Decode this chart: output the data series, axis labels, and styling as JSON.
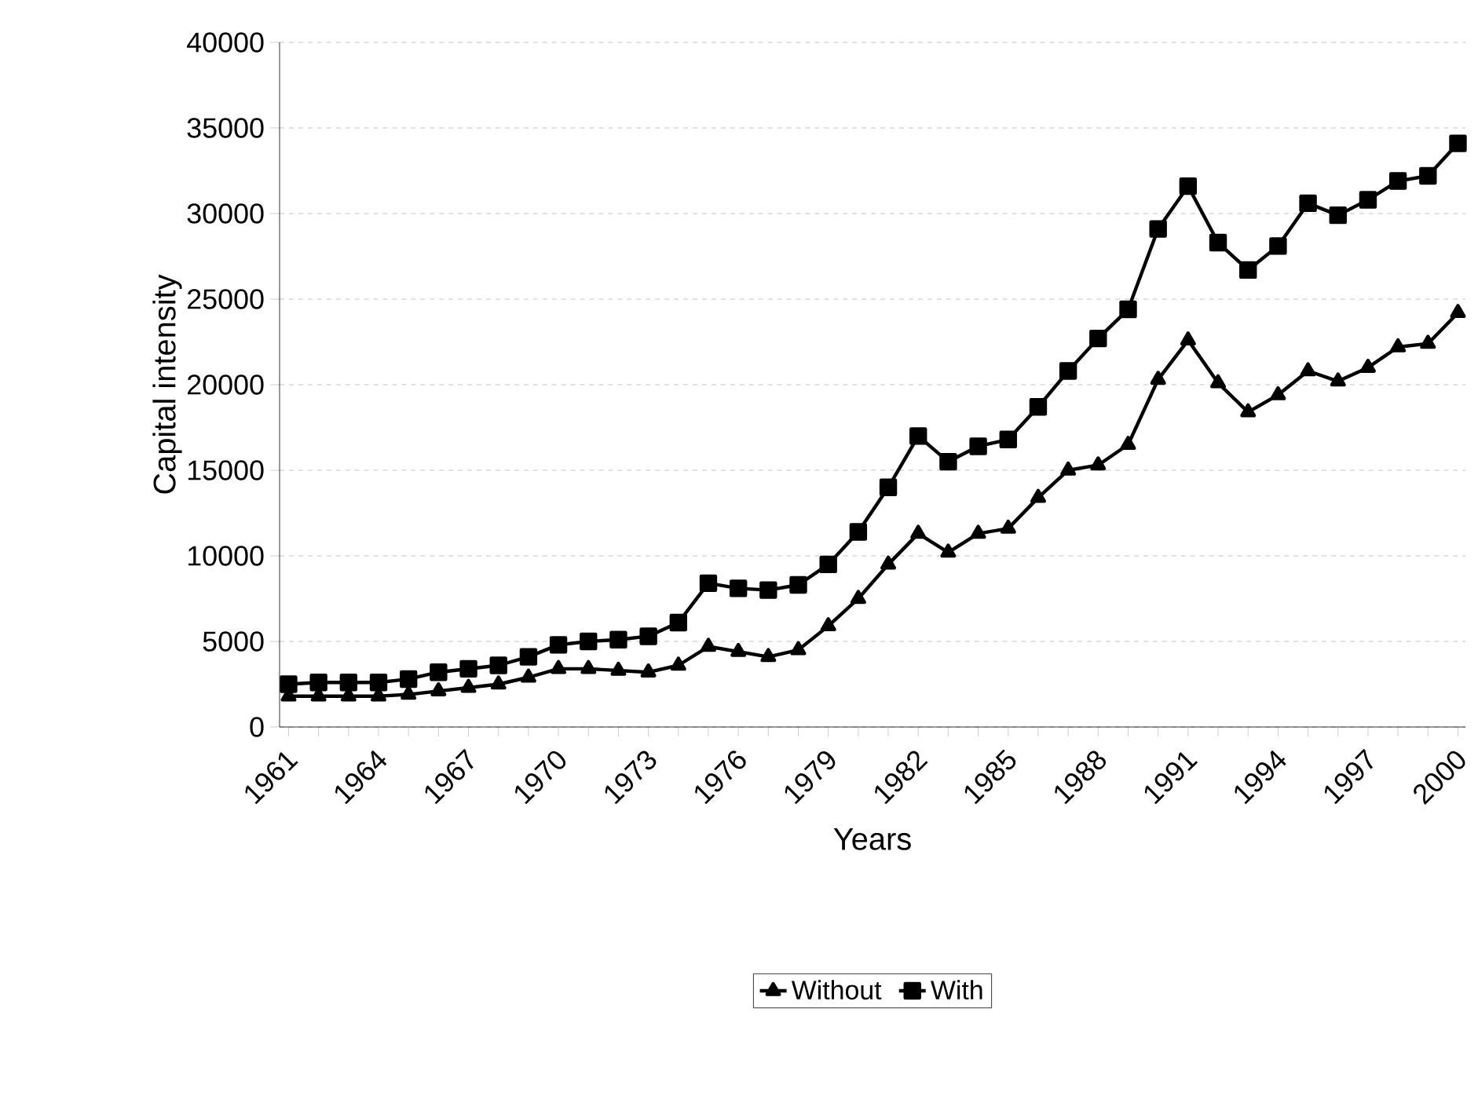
{
  "chart_data": {
    "type": "line",
    "xlabel": "Years",
    "ylabel": "Capital intensity",
    "categories": [
      "1961",
      null,
      null,
      "1964",
      null,
      null,
      "1967",
      null,
      null,
      "1970",
      null,
      null,
      "1973",
      null,
      null,
      "1976",
      null,
      null,
      "1979",
      null,
      null,
      "1982",
      null,
      null,
      "1985",
      null,
      null,
      "1988",
      null,
      null,
      "1991",
      null,
      null,
      "1994",
      null,
      null,
      "1997",
      null,
      null,
      "2000"
    ],
    "series": [
      {
        "name": "Without",
        "color": "#000000",
        "marker": "triangle",
        "values": [
          1800,
          1800,
          1800,
          1800,
          1900,
          2100,
          2300,
          2500,
          2900,
          3400,
          3400,
          3300,
          3200,
          3600,
          4700,
          4400,
          4100,
          4500,
          5900,
          7500,
          9500,
          11300,
          10200,
          11300,
          11600,
          13400,
          15000,
          15300,
          16500,
          20300,
          22600,
          20100,
          18400,
          19400,
          20800,
          20200,
          21000,
          22200,
          22400,
          24200
        ]
      },
      {
        "name": "With",
        "color": "#000000",
        "marker": "square",
        "values": [
          2500,
          2600,
          2600,
          2600,
          2800,
          3200,
          3400,
          3600,
          4100,
          4800,
          5000,
          5100,
          5300,
          6100,
          8400,
          8100,
          8000,
          8300,
          9500,
          11400,
          14000,
          17000,
          15500,
          16400,
          16800,
          18700,
          20800,
          22700,
          24400,
          29100,
          31600,
          28300,
          26700,
          28100,
          30600,
          29900,
          30800,
          31900,
          32200,
          34100
        ]
      }
    ],
    "ylim": [
      0,
      40000
    ],
    "yticks": [
      0,
      5000,
      10000,
      15000,
      20000,
      25000,
      30000,
      35000,
      40000
    ],
    "grid": "y",
    "legend": "bottom",
    "line_style": "solid"
  }
}
